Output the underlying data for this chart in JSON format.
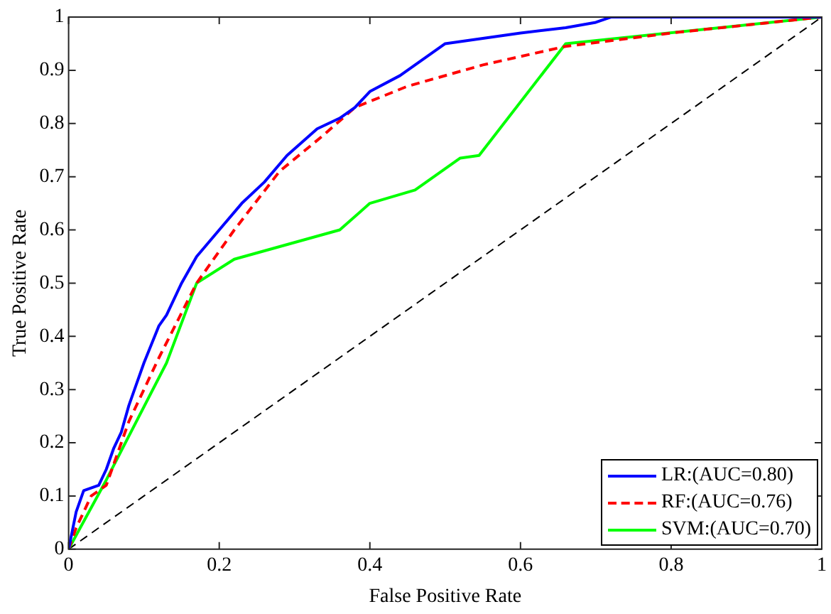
{
  "chart_data": {
    "type": "line",
    "xlabel": "False Positive Rate",
    "ylabel": "True Positive Rate",
    "xlim": [
      0,
      1
    ],
    "ylim": [
      0,
      1
    ],
    "xticks": [
      0,
      0.2,
      0.4,
      0.6,
      0.8,
      1
    ],
    "yticks": [
      0,
      0.1,
      0.2,
      0.3,
      0.4,
      0.5,
      0.6,
      0.7,
      0.8,
      0.9,
      1
    ],
    "grid": false,
    "legend": "bottom right",
    "marker": "none",
    "series": [
      {
        "name": "LR:(AUC=0.80)",
        "color": "#0000ff",
        "line_style": "solid",
        "x": [
          0,
          0.01,
          0.02,
          0.04,
          0.05,
          0.06,
          0.07,
          0.08,
          0.09,
          0.1,
          0.12,
          0.13,
          0.14,
          0.15,
          0.17,
          0.2,
          0.23,
          0.26,
          0.29,
          0.33,
          0.36,
          0.38,
          0.4,
          0.44,
          0.47,
          0.5,
          0.6,
          0.66,
          0.7,
          0.72,
          1
        ],
        "values": [
          0,
          0.07,
          0.11,
          0.12,
          0.15,
          0.19,
          0.22,
          0.27,
          0.31,
          0.35,
          0.42,
          0.44,
          0.47,
          0.5,
          0.55,
          0.6,
          0.65,
          0.69,
          0.74,
          0.79,
          0.81,
          0.83,
          0.86,
          0.89,
          0.92,
          0.95,
          0.97,
          0.98,
          0.99,
          1,
          1
        ]
      },
      {
        "name": "RF:(AUC=0.76)",
        "color": "#ff0000",
        "line_style": "dashed",
        "x": [
          0,
          0.01,
          0.03,
          0.05,
          0.08,
          0.12,
          0.17,
          0.22,
          0.28,
          0.34,
          0.38,
          0.45,
          0.55,
          0.66,
          0.8,
          1
        ],
        "values": [
          0,
          0.04,
          0.1,
          0.12,
          0.24,
          0.36,
          0.5,
          0.6,
          0.71,
          0.78,
          0.83,
          0.87,
          0.91,
          0.945,
          0.97,
          1
        ]
      },
      {
        "name": "SVM:(AUC=0.70)",
        "color": "#00ff00",
        "line_style": "solid",
        "x": [
          0,
          0.05,
          0.13,
          0.17,
          0.22,
          0.36,
          0.4,
          0.46,
          0.52,
          0.545,
          0.66,
          1
        ],
        "values": [
          0,
          0.13,
          0.35,
          0.5,
          0.545,
          0.6,
          0.65,
          0.675,
          0.735,
          0.74,
          0.95,
          1
        ]
      },
      {
        "color": "#000000",
        "line_style": "dashed",
        "x": [
          0,
          1
        ],
        "values": [
          0,
          1
        ]
      }
    ]
  }
}
